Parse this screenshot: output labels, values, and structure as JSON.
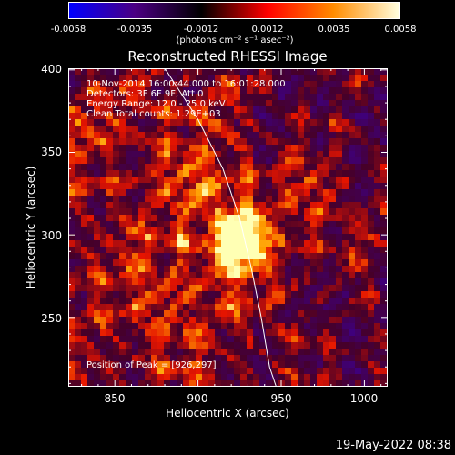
{
  "colorbar": {
    "ticks": [
      "-0.0058",
      "-0.0035",
      "-0.0012",
      "0.0012",
      "0.0035",
      "0.0058"
    ],
    "unit": "(photons cm⁻² s⁻¹ asec⁻²)",
    "range": [
      -0.0058,
      0.0058
    ],
    "colors": [
      "#0000ff",
      "#4b0082",
      "#000000",
      "#ff0000",
      "#ff8c00",
      "#ffffe0"
    ]
  },
  "chart_data": {
    "type": "heatmap",
    "title": "Reconstructed RHESSI Image",
    "xlabel": "Heliocentric X (arcsec)",
    "ylabel": "Heliocentric Y (arcsec)",
    "xlim": [
      822,
      1014
    ],
    "ylim": [
      208,
      401
    ],
    "x_ticks": [
      850,
      900,
      950,
      1000
    ],
    "y_ticks": [
      250,
      300,
      350,
      400
    ],
    "peak": [
      926,
      297
    ],
    "annotations": [
      "10-Nov-2014 16:00:44.000 to 16:01:28.000",
      "Detectors: 3F 6F 9F, Att 0",
      "Energy Range: 12.0 - 25.0 keV",
      "Clean     Total counts: 1.29E+03",
      "Position of Peak = [926,297]"
    ],
    "limb_points": [
      [
        880,
        401
      ],
      [
        900,
        370
      ],
      [
        915,
        340
      ],
      [
        925,
        310
      ],
      [
        932,
        280
      ],
      [
        938,
        250
      ],
      [
        943,
        220
      ],
      [
        947,
        208
      ]
    ]
  },
  "footer": {
    "date": "19-May-2022 08:38"
  }
}
